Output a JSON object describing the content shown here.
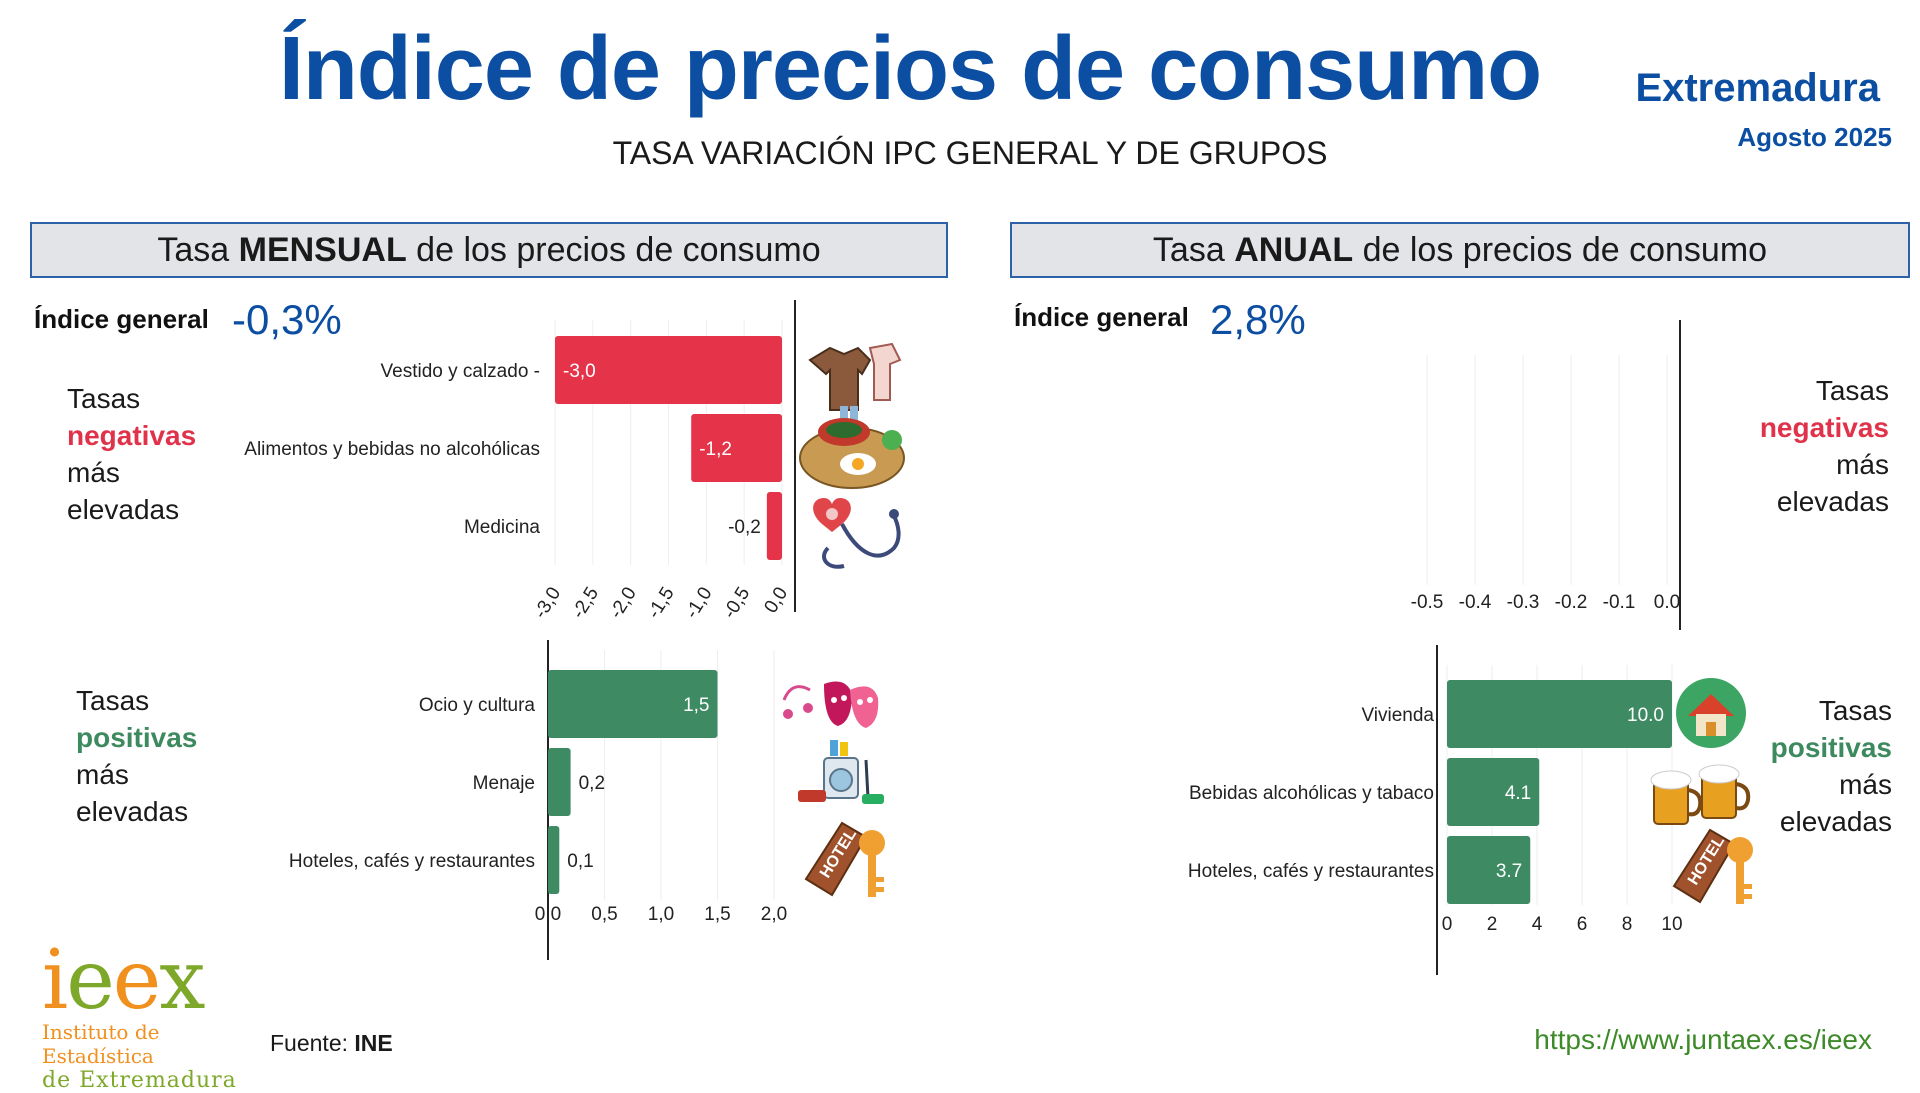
{
  "header": {
    "title": "Índice de precios de consumo",
    "subtitle": "TASA VARIACIÓN IPC GENERAL Y DE GRUPOS",
    "region": "Extremadura",
    "period": "Agosto 2025"
  },
  "monthly": {
    "header_pre": "Tasa ",
    "header_bold": "MENSUAL",
    "header_post": " de los precios de consumo",
    "general_label": "Índice general",
    "general_value": "-0,3%",
    "neg_side": {
      "l1": "Tasas",
      "l2": "negativas",
      "l3": "más",
      "l4": "elevadas"
    },
    "pos_side": {
      "l1": "Tasas",
      "l2": "positivas",
      "l3": "más",
      "l4": "elevadas"
    }
  },
  "annual": {
    "header_pre": "Tasa ",
    "header_bold": "ANUAL",
    "header_post": " de los precios de consumo",
    "general_label": "Índice general",
    "general_value": "2,8%",
    "neg_side": {
      "l1": "Tasas",
      "l2": "negativas",
      "l3": "más",
      "l4": "elevadas"
    },
    "pos_side": {
      "l1": "Tasas",
      "l2": "positivas",
      "l3": "más",
      "l4": "elevadas"
    }
  },
  "colors": {
    "negative_bar": "#e5344a",
    "positive_bar": "#3d8a63",
    "title_blue": "#0b4ea2",
    "link_green": "#3d8a28"
  },
  "chart_data": [
    {
      "type": "bar",
      "orientation": "horizontal",
      "categories": [
        "Vestido y calzado -",
        "Alimentos y bebidas no alcohólicas",
        "Medicina"
      ],
      "values": [
        -3.0,
        -1.2,
        -0.2
      ],
      "value_labels": [
        "-3,0",
        "-1,2",
        "-0,2"
      ],
      "xlim": [
        -3.0,
        0.0
      ],
      "ticks": [
        "-3,0",
        "-2,5",
        "-2,0",
        "-1,5",
        "-1,0",
        "-0,5",
        "0,0"
      ],
      "tick_values": [
        -3.0,
        -2.5,
        -2.0,
        -1.5,
        -1.0,
        -0.5,
        0.0
      ],
      "icons": [
        "clothing-icon",
        "food-plate-icon",
        "stethoscope-icon"
      ]
    },
    {
      "type": "bar",
      "orientation": "horizontal",
      "categories": [
        "Ocio y cultura",
        "Menaje",
        "Hoteles, cafés y restaurantes"
      ],
      "values": [
        1.5,
        0.2,
        0.1
      ],
      "value_labels": [
        "1,5",
        "0,2",
        "0,1"
      ],
      "xlim": [
        0.0,
        2.0
      ],
      "ticks": [
        "0,0",
        "0,5",
        "1,0",
        "1,5",
        "2,0"
      ],
      "tick_values": [
        0.0,
        0.5,
        1.0,
        1.5,
        2.0
      ],
      "icons": [
        "theater-masks-icon",
        "household-appliances-icon",
        "hotel-key-icon"
      ]
    },
    {
      "type": "bar",
      "orientation": "horizontal",
      "categories": [],
      "values": [],
      "xlim": [
        -0.5,
        0.0
      ],
      "ticks": [
        "-0.5",
        "-0.4",
        "-0.3",
        "-0.2",
        "-0.1",
        "0.0"
      ],
      "tick_values": [
        -0.5,
        -0.4,
        -0.3,
        -0.2,
        -0.1,
        0.0
      ]
    },
    {
      "type": "bar",
      "orientation": "horizontal",
      "categories": [
        "Vivienda",
        "Bebidas alcohólicas y tabaco",
        "Hoteles, cafés y restaurantes"
      ],
      "values": [
        10.0,
        4.1,
        3.7
      ],
      "value_labels": [
        "10.0",
        "4.1",
        "3.7"
      ],
      "xlim": [
        0,
        10
      ],
      "ticks": [
        "0",
        "2",
        "4",
        "6",
        "8",
        "10"
      ],
      "tick_values": [
        0,
        2,
        4,
        6,
        8,
        10
      ],
      "icons": [
        "house-icon",
        "beer-mugs-icon",
        "hotel-key-icon"
      ]
    }
  ],
  "footer": {
    "source_label": "Fuente: ",
    "source_value": "INE",
    "url": "https://www.juntaex.es/ieex",
    "logo_letters": "ieex",
    "logo_line1": "Instituto de Estadística",
    "logo_line2": "de Extremadura"
  }
}
